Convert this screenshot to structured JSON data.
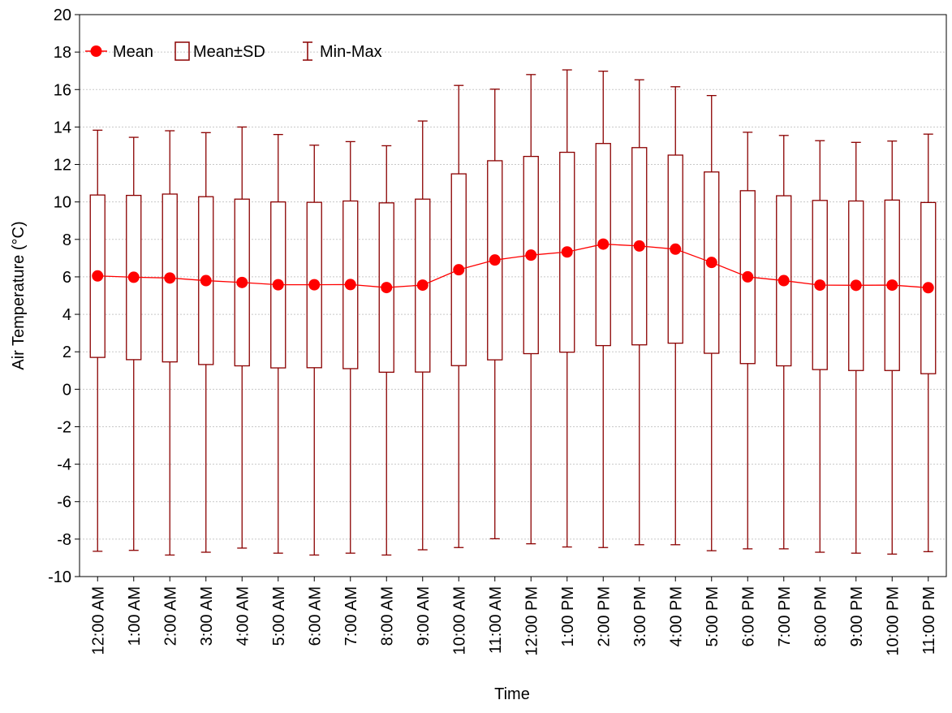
{
  "chart_data": {
    "type": "box",
    "xlabel": "Time",
    "ylabel": "Air Temperature (°C)",
    "ylim": [
      -10,
      20
    ],
    "yticks": [
      -10,
      -8,
      -6,
      -4,
      -2,
      0,
      2,
      4,
      6,
      8,
      10,
      12,
      14,
      16,
      18,
      20
    ],
    "grid": "horizontal dotted",
    "legend_position": "top-left",
    "legend": [
      "Mean",
      "Mean±SD",
      "Min-Max"
    ],
    "colors": {
      "series": "#ff0000",
      "box": "#8b0000",
      "grid": "#c8c8c8",
      "axis": "#000000"
    },
    "categories": [
      "12:00 AM",
      "1:00 AM",
      "2:00 AM",
      "3:00 AM",
      "4:00 AM",
      "5:00 AM",
      "6:00 AM",
      "7:00 AM",
      "8:00 AM",
      "9:00 AM",
      "10:00 AM",
      "11:00 AM",
      "12:00 PM",
      "1:00 PM",
      "2:00 PM",
      "3:00 PM",
      "4:00 PM",
      "5:00 PM",
      "6:00 PM",
      "7:00 PM",
      "8:00 PM",
      "9:00 PM",
      "10:00 PM",
      "11:00 PM"
    ],
    "mean": [
      6.05,
      5.98,
      5.94,
      5.8,
      5.7,
      5.58,
      5.58,
      5.59,
      5.43,
      5.56,
      6.38,
      6.9,
      7.16,
      7.33,
      7.75,
      7.65,
      7.48,
      6.77,
      6.0,
      5.8,
      5.56,
      5.55,
      5.56,
      5.42
    ],
    "sd_low": [
      1.7,
      1.58,
      1.46,
      1.32,
      1.25,
      1.14,
      1.15,
      1.1,
      0.91,
      0.92,
      1.26,
      1.57,
      1.9,
      1.98,
      2.33,
      2.37,
      2.46,
      1.92,
      1.37,
      1.25,
      1.05,
      1.0,
      1.0,
      0.83
    ],
    "sd_high": [
      10.37,
      10.35,
      10.42,
      10.28,
      10.15,
      10.0,
      9.98,
      10.05,
      9.95,
      10.15,
      11.5,
      12.2,
      12.43,
      12.65,
      13.12,
      12.9,
      12.5,
      11.6,
      10.6,
      10.33,
      10.08,
      10.05,
      10.1,
      9.97
    ],
    "min": [
      -8.65,
      -8.6,
      -8.85,
      -8.7,
      -8.48,
      -8.75,
      -8.85,
      -8.75,
      -8.85,
      -8.57,
      -8.45,
      -7.98,
      -8.25,
      -8.42,
      -8.45,
      -8.3,
      -8.3,
      -8.62,
      -8.52,
      -8.52,
      -8.7,
      -8.75,
      -8.8,
      -8.67
    ],
    "max": [
      13.83,
      13.45,
      13.8,
      13.7,
      14.0,
      13.6,
      13.03,
      13.22,
      13.0,
      14.32,
      16.22,
      16.02,
      16.8,
      17.05,
      16.98,
      16.52,
      16.15,
      15.68,
      13.72,
      13.55,
      13.27,
      13.18,
      13.25,
      13.62
    ]
  }
}
